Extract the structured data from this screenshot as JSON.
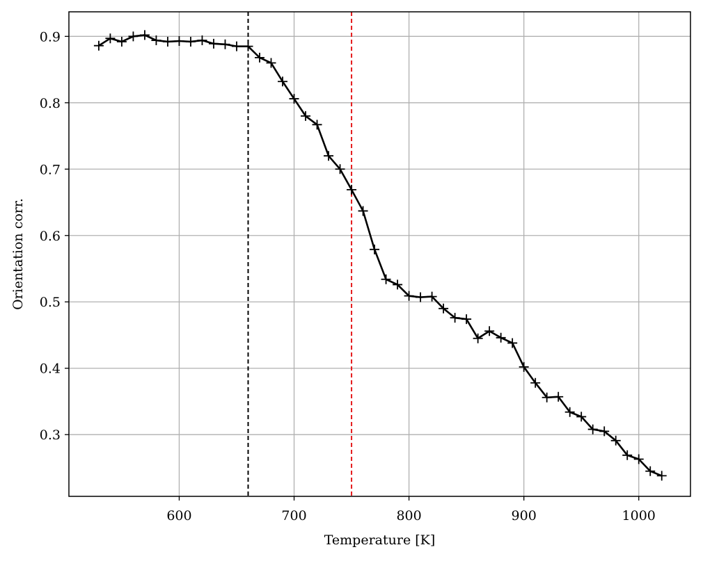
{
  "chart_data": {
    "type": "line",
    "title": "",
    "xlabel": "Temperature [K]",
    "ylabel": "Orientation corr.",
    "xlim": [
      504,
      1045
    ],
    "ylim": [
      0.207,
      0.937
    ],
    "xticks": [
      600,
      700,
      800,
      900,
      1000
    ],
    "yticks": [
      0.3,
      0.4,
      0.5,
      0.6,
      0.7,
      0.8,
      0.9
    ],
    "xtick_labels": [
      "600",
      "700",
      "800",
      "900",
      "1000"
    ],
    "ytick_labels": [
      "0.3",
      "0.4",
      "0.5",
      "0.6",
      "0.7",
      "0.8",
      "0.9"
    ],
    "grid": true,
    "series": [
      {
        "name": "Orientation corr.",
        "color": "#000000",
        "marker": "plus",
        "x": [
          530,
          540,
          550,
          560,
          570,
          580,
          590,
          600,
          610,
          620,
          630,
          640,
          650,
          660,
          670,
          680,
          690,
          700,
          710,
          720,
          730,
          740,
          750,
          760,
          770,
          780,
          790,
          800,
          810,
          820,
          830,
          840,
          850,
          860,
          870,
          880,
          890,
          900,
          910,
          920,
          930,
          940,
          950,
          960,
          970,
          980,
          990,
          1000,
          1010,
          1020
        ],
        "y": [
          0.886,
          0.897,
          0.892,
          0.9,
          0.902,
          0.894,
          0.892,
          0.893,
          0.892,
          0.894,
          0.889,
          0.888,
          0.885,
          0.885,
          0.868,
          0.86,
          0.832,
          0.806,
          0.78,
          0.767,
          0.72,
          0.7,
          0.669,
          0.637,
          0.579,
          0.534,
          0.526,
          0.509,
          0.507,
          0.508,
          0.49,
          0.476,
          0.474,
          0.445,
          0.456,
          0.446,
          0.438,
          0.402,
          0.378,
          0.356,
          0.357,
          0.334,
          0.327,
          0.308,
          0.305,
          0.291,
          0.269,
          0.263,
          0.245,
          0.238
        ]
      }
    ],
    "vlines": [
      {
        "name": "black-dashed-line",
        "x": 660,
        "color": "#000000",
        "style": "dashed"
      },
      {
        "name": "red-dashed-line",
        "x": 750,
        "color": "#e41a1c",
        "style": "dashed"
      }
    ]
  }
}
